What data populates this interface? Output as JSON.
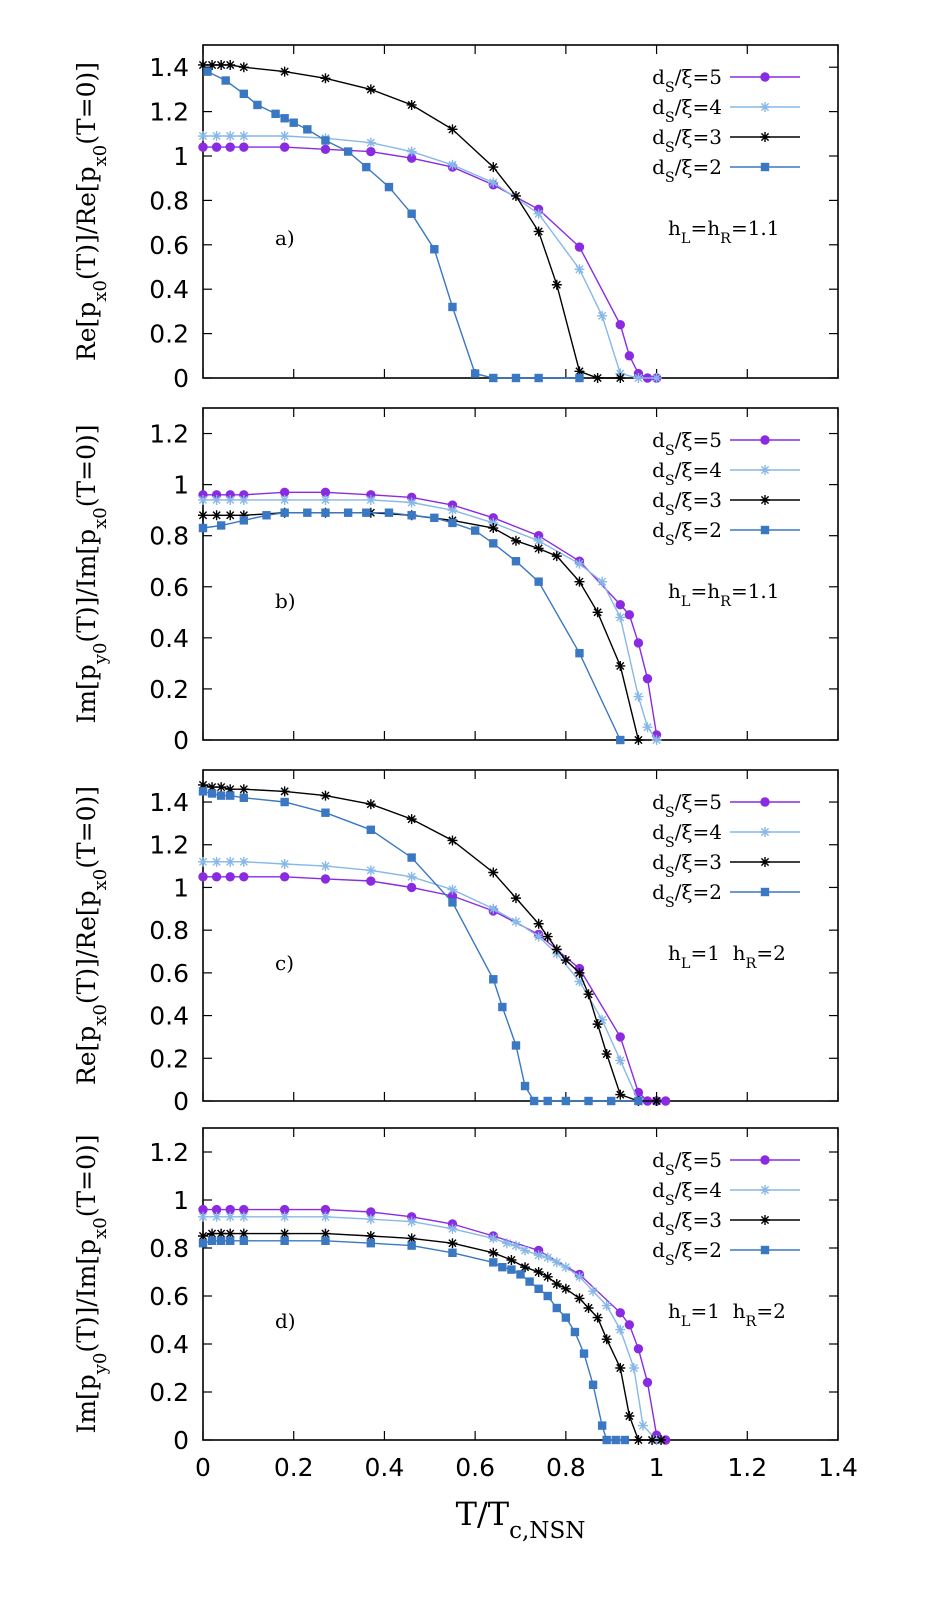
{
  "chart_data": [
    {
      "type": "line",
      "panel_label": "a)",
      "annotation": "h_L=h_R=1.1",
      "ylabel": "Re[p_x0(T)]/Re[p_x0(T=0)]",
      "xlim": [
        0,
        1.4
      ],
      "ylim": [
        0,
        1.5
      ],
      "x_ticks": [
        0,
        0.2,
        0.4,
        0.6,
        0.8,
        1,
        1.2,
        1.4
      ],
      "y_ticks": [
        0,
        0.2,
        0.4,
        0.6,
        0.8,
        1,
        1.2,
        1.4
      ],
      "legend": "top-right",
      "series": [
        {
          "name": "d_S/ξ=5",
          "color": "#8a2be2",
          "marker": "circle",
          "x": [
            0,
            0.03,
            0.06,
            0.09,
            0.18,
            0.27,
            0.37,
            0.46,
            0.55,
            0.64,
            0.74,
            0.83,
            0.92,
            0.94,
            0.96,
            0.98,
            1.0
          ],
          "y": [
            1.04,
            1.04,
            1.04,
            1.04,
            1.04,
            1.03,
            1.02,
            0.99,
            0.95,
            0.87,
            0.76,
            0.59,
            0.24,
            0.1,
            0.02,
            0.0,
            0.0
          ]
        },
        {
          "name": "d_S/ξ=4",
          "color": "#87b8e8",
          "marker": "asterisk",
          "x": [
            0,
            0.03,
            0.06,
            0.09,
            0.18,
            0.27,
            0.37,
            0.46,
            0.55,
            0.64,
            0.74,
            0.83,
            0.88,
            0.92,
            0.96,
            1.0
          ],
          "y": [
            1.09,
            1.09,
            1.09,
            1.09,
            1.09,
            1.08,
            1.06,
            1.02,
            0.96,
            0.88,
            0.74,
            0.49,
            0.28,
            0.02,
            0.0,
            0.0
          ]
        },
        {
          "name": "d_S/ξ=3",
          "color": "#000000",
          "marker": "asterisk",
          "x": [
            0,
            0.02,
            0.04,
            0.06,
            0.09,
            0.18,
            0.27,
            0.37,
            0.46,
            0.55,
            0.64,
            0.69,
            0.74,
            0.78,
            0.83,
            0.87,
            0.92
          ],
          "y": [
            1.41,
            1.41,
            1.41,
            1.41,
            1.4,
            1.38,
            1.35,
            1.3,
            1.23,
            1.12,
            0.95,
            0.82,
            0.66,
            0.42,
            0.03,
            0.0,
            0.0
          ]
        },
        {
          "name": "d_S/ξ=2",
          "color": "#3a78c3",
          "marker": "square",
          "x": [
            0.01,
            0.05,
            0.09,
            0.12,
            0.16,
            0.18,
            0.2,
            0.23,
            0.27,
            0.32,
            0.36,
            0.41,
            0.46,
            0.51,
            0.55,
            0.6,
            0.64,
            0.69,
            0.74,
            0.83
          ],
          "y": [
            1.38,
            1.34,
            1.28,
            1.23,
            1.19,
            1.17,
            1.15,
            1.12,
            1.07,
            1.02,
            0.95,
            0.86,
            0.74,
            0.58,
            0.32,
            0.02,
            0.0,
            0.0,
            0.0,
            0.0
          ]
        }
      ]
    },
    {
      "type": "line",
      "panel_label": "b)",
      "annotation": "h_L=h_R=1.1",
      "ylabel": "Im[p_y0(T)]/Im[p_x0(T=0)]",
      "xlim": [
        0,
        1.4
      ],
      "ylim": [
        0,
        1.3
      ],
      "x_ticks": [
        0,
        0.2,
        0.4,
        0.6,
        0.8,
        1,
        1.2,
        1.4
      ],
      "y_ticks": [
        0,
        0.2,
        0.4,
        0.6,
        0.8,
        1,
        1.2
      ],
      "legend": "top-right",
      "series": [
        {
          "name": "d_S/ξ=5",
          "color": "#8a2be2",
          "marker": "circle",
          "x": [
            0,
            0.03,
            0.06,
            0.09,
            0.18,
            0.27,
            0.37,
            0.46,
            0.55,
            0.64,
            0.74,
            0.83,
            0.92,
            0.94,
            0.96,
            0.98,
            1.0
          ],
          "y": [
            0.96,
            0.96,
            0.96,
            0.96,
            0.97,
            0.97,
            0.96,
            0.95,
            0.92,
            0.87,
            0.8,
            0.7,
            0.53,
            0.49,
            0.38,
            0.24,
            0.02
          ]
        },
        {
          "name": "d_S/ξ=4",
          "color": "#87b8e8",
          "marker": "asterisk",
          "x": [
            0,
            0.03,
            0.06,
            0.09,
            0.18,
            0.27,
            0.37,
            0.46,
            0.55,
            0.64,
            0.74,
            0.83,
            0.88,
            0.92,
            0.96,
            0.98,
            1.0
          ],
          "y": [
            0.94,
            0.94,
            0.94,
            0.94,
            0.94,
            0.94,
            0.94,
            0.93,
            0.9,
            0.85,
            0.78,
            0.69,
            0.62,
            0.48,
            0.17,
            0.05,
            0.0
          ]
        },
        {
          "name": "d_S/ξ=3",
          "color": "#000000",
          "marker": "asterisk",
          "x": [
            0,
            0.03,
            0.06,
            0.09,
            0.18,
            0.27,
            0.37,
            0.46,
            0.55,
            0.64,
            0.69,
            0.74,
            0.78,
            0.83,
            0.87,
            0.92,
            0.96
          ],
          "y": [
            0.88,
            0.88,
            0.88,
            0.88,
            0.89,
            0.89,
            0.89,
            0.88,
            0.86,
            0.83,
            0.78,
            0.75,
            0.72,
            0.62,
            0.5,
            0.29,
            0.0
          ]
        },
        {
          "name": "d_S/ξ=2",
          "color": "#3a78c3",
          "marker": "square",
          "x": [
            0,
            0.04,
            0.09,
            0.14,
            0.18,
            0.23,
            0.27,
            0.32,
            0.36,
            0.41,
            0.46,
            0.51,
            0.55,
            0.6,
            0.64,
            0.69,
            0.74,
            0.83,
            0.92
          ],
          "y": [
            0.83,
            0.84,
            0.86,
            0.88,
            0.89,
            0.89,
            0.89,
            0.89,
            0.89,
            0.89,
            0.88,
            0.87,
            0.85,
            0.82,
            0.77,
            0.7,
            0.62,
            0.34,
            0.0
          ]
        }
      ]
    },
    {
      "type": "line",
      "panel_label": "c)",
      "annotation": "h_L=1  h_R=2",
      "ylabel": "Re[p_x0(T)]/Re[p_x0(T=0)]",
      "xlim": [
        0,
        1.4
      ],
      "ylim": [
        0,
        1.55
      ],
      "x_ticks": [
        0,
        0.2,
        0.4,
        0.6,
        0.8,
        1,
        1.2,
        1.4
      ],
      "y_ticks": [
        0,
        0.2,
        0.4,
        0.6,
        0.8,
        1,
        1.2,
        1.4
      ],
      "legend": "top-right",
      "series": [
        {
          "name": "d_S/ξ=5",
          "color": "#8a2be2",
          "marker": "circle",
          "x": [
            0,
            0.03,
            0.06,
            0.09,
            0.18,
            0.27,
            0.37,
            0.46,
            0.55,
            0.64,
            0.74,
            0.83,
            0.92,
            0.96,
            0.98,
            1.0,
            1.02
          ],
          "y": [
            1.05,
            1.05,
            1.05,
            1.05,
            1.05,
            1.04,
            1.03,
            1.0,
            0.96,
            0.89,
            0.78,
            0.62,
            0.3,
            0.04,
            0.0,
            0.0,
            0.0
          ]
        },
        {
          "name": "d_S/ξ=4",
          "color": "#87b8e8",
          "marker": "asterisk",
          "x": [
            0,
            0.03,
            0.06,
            0.09,
            0.18,
            0.27,
            0.37,
            0.46,
            0.55,
            0.64,
            0.69,
            0.74,
            0.78,
            0.83,
            0.88,
            0.92,
            0.96,
            1.0
          ],
          "y": [
            1.12,
            1.12,
            1.12,
            1.12,
            1.11,
            1.1,
            1.08,
            1.05,
            0.99,
            0.9,
            0.84,
            0.77,
            0.69,
            0.56,
            0.38,
            0.19,
            0.0,
            0.0
          ]
        },
        {
          "name": "d_S/ξ=3",
          "color": "#000000",
          "marker": "asterisk",
          "x": [
            0,
            0.02,
            0.04,
            0.06,
            0.09,
            0.18,
            0.27,
            0.37,
            0.46,
            0.55,
            0.64,
            0.69,
            0.74,
            0.76,
            0.78,
            0.8,
            0.83,
            0.85,
            0.87,
            0.89,
            0.92,
            0.96,
            1.0
          ],
          "y": [
            1.48,
            1.47,
            1.47,
            1.46,
            1.46,
            1.45,
            1.43,
            1.39,
            1.32,
            1.22,
            1.07,
            0.95,
            0.83,
            0.77,
            0.71,
            0.66,
            0.6,
            0.5,
            0.36,
            0.22,
            0.03,
            0.0,
            0.0
          ]
        },
        {
          "name": "d_S/ξ=2",
          "color": "#3a78c3",
          "marker": "square",
          "x": [
            0,
            0.02,
            0.04,
            0.06,
            0.09,
            0.18,
            0.27,
            0.37,
            0.46,
            0.55,
            0.64,
            0.66,
            0.69,
            0.71,
            0.73,
            0.76,
            0.8,
            0.85,
            0.9,
            0.96
          ],
          "y": [
            1.45,
            1.44,
            1.43,
            1.43,
            1.42,
            1.4,
            1.35,
            1.27,
            1.14,
            0.93,
            0.57,
            0.44,
            0.26,
            0.07,
            0.0,
            0.0,
            0.0,
            0.0,
            0.0,
            0.0
          ]
        }
      ]
    },
    {
      "type": "line",
      "panel_label": "d)",
      "annotation": "h_L=1  h_R=2",
      "ylabel": "Im[p_y0(T)]/Im[p_x0(T=0)]",
      "xlabel": "T/T_c,NSN",
      "xlim": [
        0,
        1.4
      ],
      "ylim": [
        0,
        1.3
      ],
      "x_ticks": [
        0,
        0.2,
        0.4,
        0.6,
        0.8,
        1,
        1.2,
        1.4
      ],
      "y_ticks": [
        0,
        0.2,
        0.4,
        0.6,
        0.8,
        1,
        1.2
      ],
      "legend": "top-right",
      "series": [
        {
          "name": "d_S/ξ=5",
          "color": "#8a2be2",
          "marker": "circle",
          "x": [
            0,
            0.03,
            0.06,
            0.09,
            0.18,
            0.27,
            0.37,
            0.46,
            0.55,
            0.64,
            0.74,
            0.83,
            0.92,
            0.94,
            0.96,
            0.98,
            1.0,
            1.02
          ],
          "y": [
            0.96,
            0.96,
            0.96,
            0.96,
            0.96,
            0.96,
            0.95,
            0.93,
            0.9,
            0.85,
            0.79,
            0.69,
            0.53,
            0.48,
            0.38,
            0.24,
            0.02,
            0.0
          ]
        },
        {
          "name": "d_S/ξ=4",
          "color": "#87b8e8",
          "marker": "asterisk",
          "x": [
            0,
            0.03,
            0.06,
            0.09,
            0.18,
            0.27,
            0.37,
            0.46,
            0.55,
            0.64,
            0.67,
            0.69,
            0.71,
            0.74,
            0.76,
            0.78,
            0.8,
            0.83,
            0.86,
            0.89,
            0.92,
            0.95,
            0.97,
            1.0
          ],
          "y": [
            0.93,
            0.93,
            0.93,
            0.93,
            0.93,
            0.93,
            0.92,
            0.91,
            0.88,
            0.84,
            0.82,
            0.81,
            0.79,
            0.77,
            0.76,
            0.74,
            0.72,
            0.68,
            0.62,
            0.56,
            0.46,
            0.3,
            0.06,
            0.0
          ]
        },
        {
          "name": "d_S/ξ=3",
          "color": "#000000",
          "marker": "asterisk",
          "x": [
            0,
            0.02,
            0.04,
            0.06,
            0.09,
            0.18,
            0.27,
            0.37,
            0.46,
            0.55,
            0.64,
            0.68,
            0.71,
            0.74,
            0.76,
            0.78,
            0.8,
            0.83,
            0.85,
            0.87,
            0.89,
            0.92,
            0.94,
            0.96,
            0.99,
            1.01
          ],
          "y": [
            0.85,
            0.86,
            0.86,
            0.86,
            0.86,
            0.86,
            0.86,
            0.85,
            0.84,
            0.82,
            0.78,
            0.75,
            0.72,
            0.7,
            0.68,
            0.65,
            0.63,
            0.59,
            0.55,
            0.51,
            0.42,
            0.3,
            0.1,
            0.0,
            0.0,
            0.0
          ]
        },
        {
          "name": "d_S/ξ=2",
          "color": "#3a78c3",
          "marker": "square",
          "x": [
            0,
            0.02,
            0.04,
            0.06,
            0.09,
            0.18,
            0.27,
            0.37,
            0.46,
            0.55,
            0.64,
            0.66,
            0.68,
            0.7,
            0.72,
            0.74,
            0.76,
            0.78,
            0.8,
            0.82,
            0.84,
            0.86,
            0.88,
            0.89,
            0.91,
            0.93
          ],
          "y": [
            0.82,
            0.83,
            0.83,
            0.83,
            0.83,
            0.83,
            0.83,
            0.82,
            0.81,
            0.78,
            0.74,
            0.72,
            0.71,
            0.69,
            0.66,
            0.63,
            0.6,
            0.55,
            0.51,
            0.45,
            0.36,
            0.23,
            0.06,
            0.0,
            0.0,
            0.0
          ]
        }
      ]
    }
  ]
}
